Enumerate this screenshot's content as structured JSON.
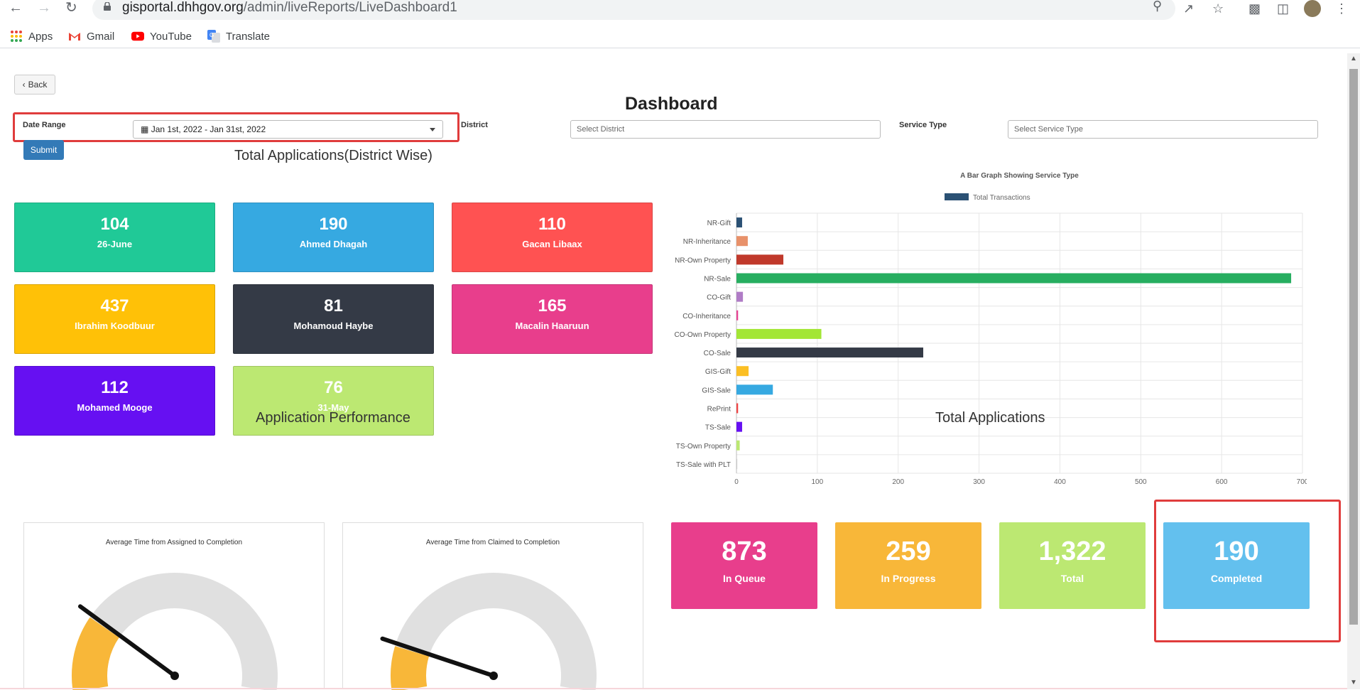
{
  "browser": {
    "url_host": "gisportal.dhhgov.org",
    "url_path": "/admin/liveReports/LiveDashboard1",
    "bookmarks": [
      "Apps",
      "Gmail",
      "YouTube",
      "Translate"
    ]
  },
  "header": {
    "back_label": "Back",
    "title": "Dashboard"
  },
  "filters": {
    "date_range_label": "Date Range",
    "date_range_value": "Jan 1st, 2022 - Jan 31st, 2022",
    "district_label": "District",
    "district_placeholder": "Select District",
    "service_type_label": "Service Type",
    "service_type_placeholder": "Select Service Type",
    "submit_label": "Submit"
  },
  "district_section": {
    "heading": "Total Applications(District Wise)",
    "cards": [
      {
        "value": "104",
        "name": "26-June",
        "color": "#20c997"
      },
      {
        "value": "190",
        "name": "Ahmed Dhagah",
        "color": "#36a9e1"
      },
      {
        "value": "110",
        "name": "Gacan Libaax",
        "color": "#ff5252"
      },
      {
        "value": "437",
        "name": "Ibrahim Koodbuur",
        "color": "#ffc107"
      },
      {
        "value": "81",
        "name": "Mohamoud Haybe",
        "color": "#343a46"
      },
      {
        "value": "165",
        "name": "Macalin Haaruun",
        "color": "#e83e8c"
      },
      {
        "value": "112",
        "name": "Mohamed Mooge",
        "color": "#6610f2"
      },
      {
        "value": "76",
        "name": "31-May",
        "color": "#bce872"
      }
    ]
  },
  "chart_data": {
    "type": "bar",
    "orientation": "horizontal",
    "title": "A Bar Graph Showing Service Type",
    "legend": "Total Transactions",
    "legend_color": "#2b5174",
    "categories": [
      "NR-Gift",
      "NR-Inheritance",
      "NR-Own Property",
      "NR-Sale",
      "CO-Gift",
      "CO-Inheritance",
      "CO-Own Property",
      "CO-Sale",
      "GIS-Gift",
      "GIS-Sale",
      "RePrint",
      "TS-Sale",
      "TS-Own Property",
      "TS-Sale with PLT"
    ],
    "values": [
      7,
      14,
      58,
      686,
      8,
      2,
      105,
      231,
      15,
      45,
      2,
      7,
      4,
      1
    ],
    "colors": [
      "#2b5174",
      "#e8916a",
      "#c0392b",
      "#27ae60",
      "#b07cc6",
      "#e84393",
      "#a3e635",
      "#343a46",
      "#fbbf24",
      "#36a9e1",
      "#ef4444",
      "#6610f2",
      "#bce872",
      "#cccccc"
    ],
    "xlim": [
      0,
      700
    ],
    "xticks": [
      "0",
      "100",
      "200",
      "300",
      "400",
      "500",
      "600",
      "700"
    ],
    "grid": true,
    "legend_position": "top"
  },
  "performance": {
    "heading": "Application Performance",
    "gauge1_title": "Average Time from Assigned to Completion",
    "gauge2_title": "Average Time from Claimed to Completion",
    "gauge1_level": 0.22,
    "gauge2_level": 0.13,
    "gauge_fill_color": "#f8b739",
    "gauge_track_color": "#e0e0e0"
  },
  "totals": {
    "heading": "Total Applications",
    "cards": [
      {
        "value": "873",
        "name": "In Queue",
        "color": "#e83e8c"
      },
      {
        "value": "259",
        "name": "In Progress",
        "color": "#f8b739"
      },
      {
        "value": "1,322",
        "name": "Total",
        "color": "#bce872"
      },
      {
        "value": "190",
        "name": "Completed",
        "color": "#63c0ee"
      }
    ]
  }
}
